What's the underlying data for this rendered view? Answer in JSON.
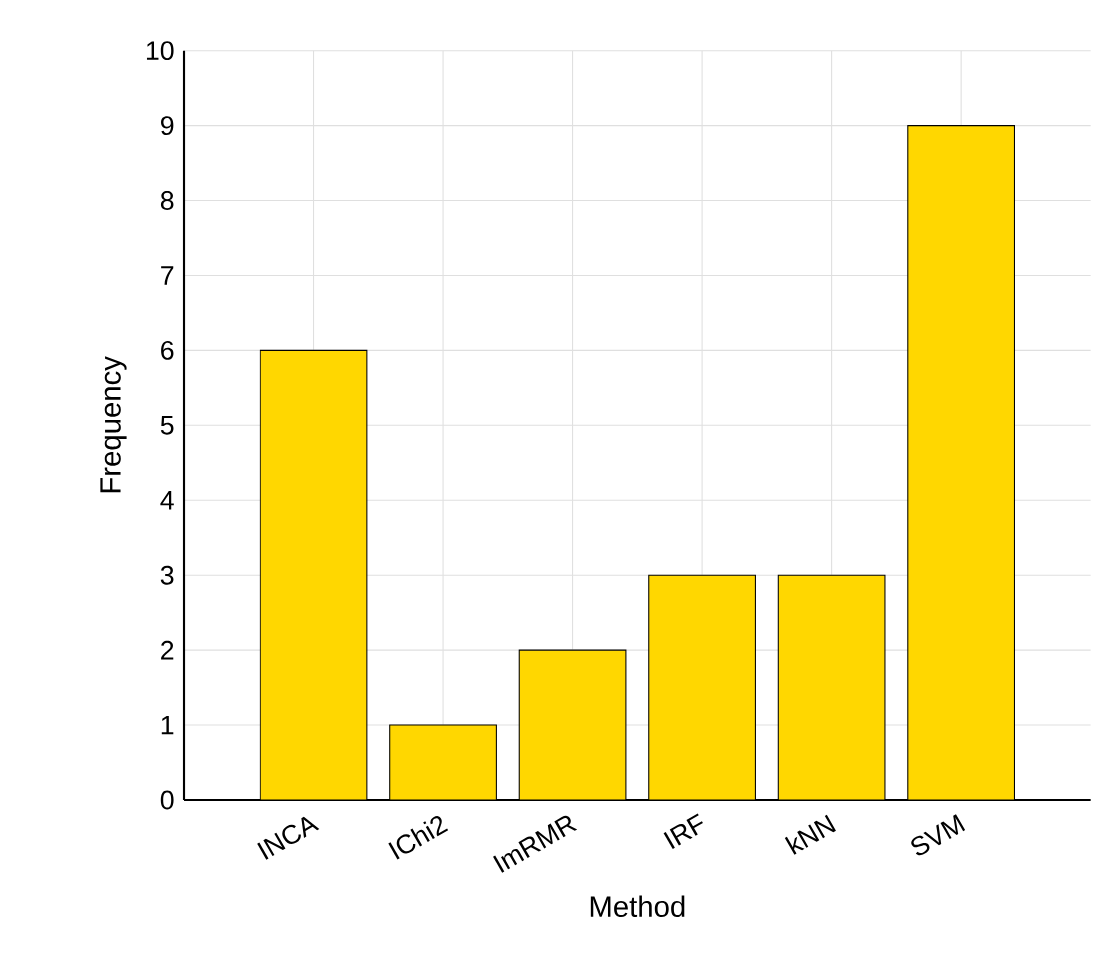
{
  "chart_data": {
    "type": "bar",
    "xlabel": "Method",
    "ylabel": "Frequency",
    "categories": [
      "INCA",
      "IChi2",
      "ImRMR",
      "IRF",
      "kNN",
      "SVM"
    ],
    "values": [
      6,
      1,
      2,
      3,
      3,
      9
    ],
    "color": "#ffd700",
    "ylim": [
      0,
      10
    ],
    "yticks": [
      0,
      1,
      2,
      3,
      4,
      5,
      6,
      7,
      8,
      9,
      10
    ],
    "grid": true
  }
}
